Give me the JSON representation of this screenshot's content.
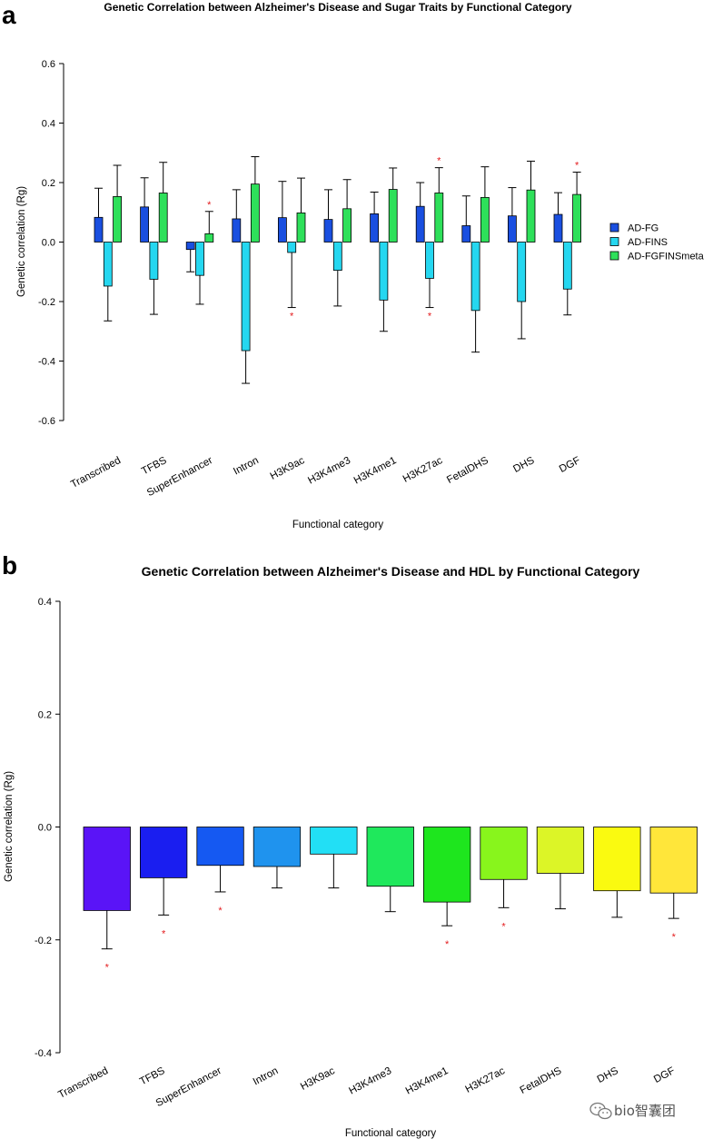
{
  "chart_data": [
    {
      "type": "bar",
      "panel_label": "a",
      "title": "Genetic Correlation between Alzheimer's Disease and Sugar Traits by Functional Category",
      "xlabel": "Functional category",
      "ylabel": "Genetic correlation (Rg)",
      "ylim": [
        -0.6,
        0.6
      ],
      "yticks": [
        -0.6,
        -0.4,
        -0.2,
        0.0,
        0.2,
        0.4,
        0.6
      ],
      "ytick_labels": [
        "-0.6",
        "-0.4",
        "-0.2",
        "0.0",
        "0.2",
        "0.4",
        "0.6"
      ],
      "legend_position": "right",
      "categories": [
        "Transcribed",
        "TFBS",
        "SuperEnhancer",
        "Intron",
        "H3K9ac",
        "H3K4me3",
        "H3K4me1",
        "H3K27ac",
        "FetalDHS",
        "DHS",
        "DGF"
      ],
      "series": [
        {
          "name": "AD-FG",
          "color": "#1a4fe0",
          "values": [
            0.083,
            0.118,
            -0.025,
            0.078,
            0.082,
            0.076,
            0.095,
            0.12,
            0.055,
            0.088,
            0.093
          ],
          "error": [
            0.098,
            0.098,
            0.075,
            0.098,
            0.122,
            0.1,
            0.073,
            0.08,
            0.1,
            0.095,
            0.073
          ],
          "significant": [
            false,
            false,
            false,
            false,
            false,
            false,
            false,
            false,
            false,
            false,
            false
          ]
        },
        {
          "name": "AD-FINS",
          "color": "#25d7f0",
          "values": [
            -0.148,
            -0.125,
            -0.112,
            -0.365,
            -0.035,
            -0.095,
            -0.195,
            -0.122,
            -0.23,
            -0.2,
            -0.158
          ],
          "error": [
            0.117,
            0.118,
            0.097,
            0.11,
            0.185,
            0.12,
            0.105,
            0.098,
            0.14,
            0.125,
            0.087
          ],
          "significant": [
            false,
            false,
            false,
            false,
            true,
            false,
            false,
            true,
            false,
            false,
            false
          ]
        },
        {
          "name": "AD-FGFINSmeta",
          "color": "#2ee05a",
          "values": [
            0.153,
            0.165,
            0.028,
            0.195,
            0.098,
            0.112,
            0.177,
            0.165,
            0.15,
            0.175,
            0.16
          ],
          "error": [
            0.105,
            0.103,
            0.075,
            0.092,
            0.117,
            0.098,
            0.072,
            0.085,
            0.103,
            0.097,
            0.075
          ],
          "significant": [
            false,
            false,
            true,
            false,
            false,
            false,
            false,
            true,
            false,
            false,
            true
          ]
        }
      ],
      "significance_marker": "*"
    },
    {
      "type": "bar",
      "panel_label": "b",
      "title": "Genetic Correlation between Alzheimer's Disease and HDL by Functional Category",
      "xlabel": "Functional category",
      "ylabel": "Genetic correlation (Rg)",
      "ylim": [
        -0.4,
        0.4
      ],
      "yticks": [
        -0.4,
        -0.2,
        0.0,
        0.2,
        0.4
      ],
      "ytick_labels": [
        "-0.4",
        "-0.2",
        "0.0",
        "0.2",
        "0.4"
      ],
      "categories": [
        "Transcribed",
        "TFBS",
        "SuperEnhancer",
        "Intron",
        "H3K9ac",
        "H3K4me3",
        "H3K4me1",
        "H3K27ac",
        "FetalDHS",
        "DHS",
        "DGF"
      ],
      "values": [
        -0.148,
        -0.09,
        -0.068,
        -0.07,
        -0.048,
        -0.105,
        -0.133,
        -0.093,
        -0.082,
        -0.113,
        -0.117
      ],
      "error": [
        0.068,
        0.066,
        0.047,
        0.038,
        0.06,
        0.045,
        0.042,
        0.05,
        0.063,
        0.047,
        0.045
      ],
      "significant": [
        true,
        true,
        true,
        false,
        false,
        false,
        true,
        true,
        false,
        false,
        true
      ],
      "colors": [
        "#5a14f7",
        "#1a1ef0",
        "#1559f2",
        "#1f93ee",
        "#22dff5",
        "#1fe85c",
        "#1ee61e",
        "#88f51c",
        "#dcf527",
        "#fafa10",
        "#ffe63a"
      ],
      "significance_marker": "*"
    }
  ],
  "watermark": {
    "text": "bio智囊团",
    "icon": "wechat-icon"
  }
}
